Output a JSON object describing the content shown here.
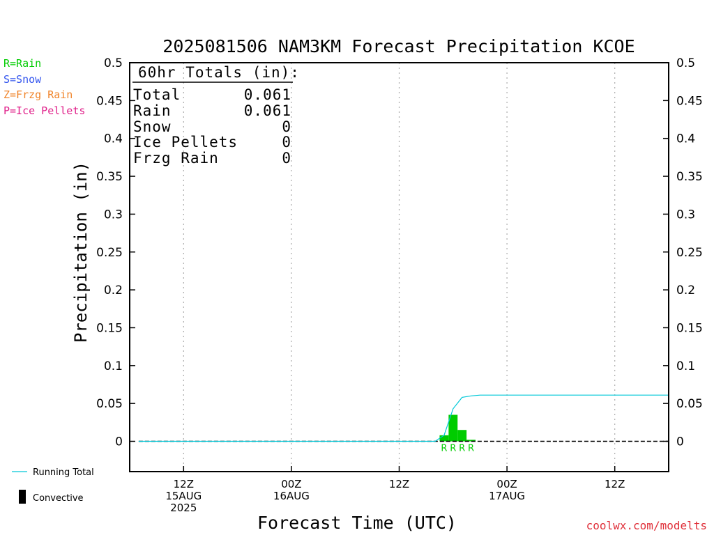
{
  "colors": {
    "rain": "#00cc00",
    "snow": "#3355ee",
    "frzg_rain": "#f0842a",
    "ice_pellets": "#e0208a",
    "running_total": "#00c8d8",
    "credit": "#e0303a"
  },
  "precip_legend": [
    {
      "label": "R=Rain",
      "color_key": "rain"
    },
    {
      "label": "S=Snow",
      "color_key": "snow"
    },
    {
      "label": "Z=Frzg Rain",
      "color_key": "frzg_rain"
    },
    {
      "label": "P=Ice Pellets",
      "color_key": "ice_pellets"
    }
  ],
  "series_legend": {
    "running_total": "Running Total",
    "convective": "Convective"
  },
  "totals_box": {
    "header": "60hr Totals (in):",
    "rows": [
      {
        "label": "Total",
        "value": "0.061"
      },
      {
        "label": "Rain",
        "value": "0.061"
      },
      {
        "label": "Snow",
        "value": "0"
      },
      {
        "label": "Ice Pellets",
        "value": "0"
      },
      {
        "label": "Frzg Rain",
        "value": "0"
      }
    ]
  },
  "credit": "coolwx.com/modelts",
  "chart_data": {
    "type": "bar",
    "title": "2025081506 NAM3KM Forecast Precipitation KCOE",
    "xlabel": "Forecast Time (UTC)",
    "ylabel": "Precipitation (in)",
    "x_unit": "forecast hour",
    "xlim": [
      0,
      60
    ],
    "ylim": [
      -0.04,
      0.5
    ],
    "yticks": [
      0,
      0.05,
      0.1,
      0.15,
      0.2,
      0.25,
      0.3,
      0.35,
      0.4,
      0.45,
      0.5
    ],
    "ytick_labels": [
      "0",
      "0.05",
      "0.1",
      "0.15",
      "0.2",
      "0.25",
      "0.3",
      "0.35",
      "0.4",
      "0.45",
      "0.5"
    ],
    "xticks": [
      {
        "hour": 6,
        "lines": [
          "12Z",
          "15AUG",
          "2025"
        ]
      },
      {
        "hour": 18,
        "lines": [
          "00Z",
          "16AUG"
        ]
      },
      {
        "hour": 30,
        "lines": [
          "12Z"
        ]
      },
      {
        "hour": 42,
        "lines": [
          "00Z",
          "17AUG"
        ]
      },
      {
        "hour": 54,
        "lines": [
          "12Z"
        ]
      }
    ],
    "grid": {
      "x": true,
      "y": false,
      "style": "dotted"
    },
    "bars": [
      {
        "hour": 35,
        "value": 0.008,
        "ptype": "R"
      },
      {
        "hour": 36,
        "value": 0.035,
        "ptype": "R"
      },
      {
        "hour": 37,
        "value": 0.015,
        "ptype": "R"
      },
      {
        "hour": 38,
        "value": 0.002,
        "ptype": "R"
      }
    ],
    "running_total": {
      "x": [
        1,
        34,
        35,
        36,
        37,
        38,
        39,
        60
      ],
      "y": [
        0,
        0,
        0.008,
        0.043,
        0.058,
        0.06,
        0.061,
        0.061
      ]
    },
    "zero_line": "dashed"
  }
}
